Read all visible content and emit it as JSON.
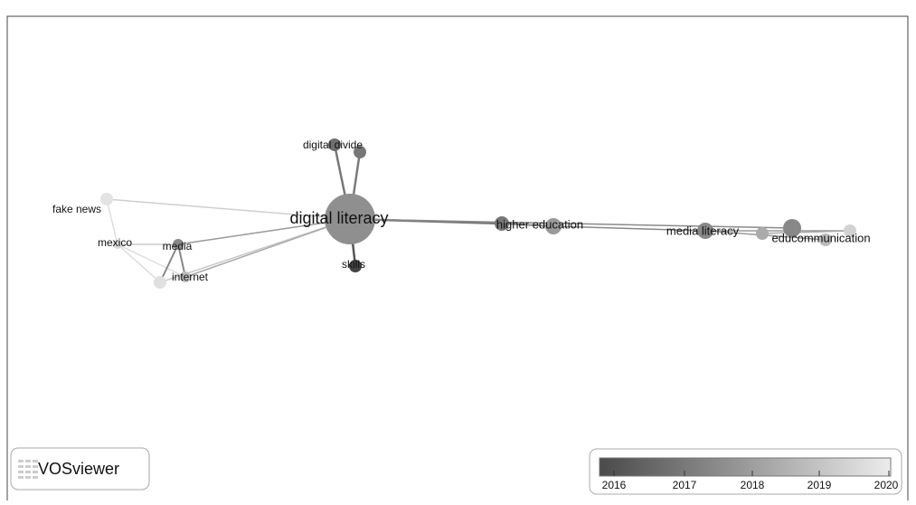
{
  "network": {
    "nodes": [
      {
        "label": "digital literacy"
      },
      {
        "label": "digital divide"
      },
      {
        "label": "fake news"
      },
      {
        "label": "mexico"
      },
      {
        "label": "media"
      },
      {
        "label": "internet"
      },
      {
        "label": "skills"
      },
      {
        "label": "higher education"
      },
      {
        "label": "media literacy"
      },
      {
        "label": "educommunication"
      }
    ]
  },
  "logo": {
    "text": "VOSviewer"
  },
  "legend": {
    "ticks": [
      2016,
      2017,
      2018,
      2019,
      2020
    ]
  }
}
